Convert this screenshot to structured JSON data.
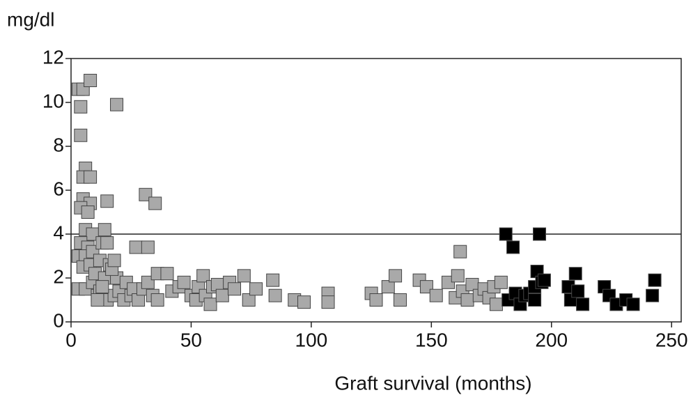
{
  "chart_data": {
    "type": "scatter",
    "y_label": "mg/dl",
    "x_label": "Graft survival (months)",
    "xlim": [
      0,
      254
    ],
    "ylim": [
      0,
      12
    ],
    "xticks": [
      0,
      50,
      100,
      150,
      200,
      250
    ],
    "yticks": [
      0,
      2,
      4,
      6,
      8,
      10,
      12
    ],
    "reference_line": 4,
    "series": [
      {
        "color": "#a9a9a9",
        "x": [
          3,
          5,
          8,
          4,
          4,
          6,
          5,
          8,
          5,
          8,
          4,
          7,
          6,
          9,
          4,
          7,
          3,
          6,
          9,
          5,
          8,
          3,
          6,
          9,
          11,
          10,
          12,
          13,
          14,
          15,
          16,
          14,
          12,
          15,
          18,
          19,
          17,
          18,
          19,
          15,
          11,
          13,
          20,
          22,
          23,
          25,
          26,
          27,
          32,
          31,
          35,
          28,
          30,
          32,
          34,
          36,
          36,
          40,
          42,
          45,
          47,
          50,
          52,
          53,
          55,
          56,
          58,
          59,
          61,
          63,
          66,
          68,
          72,
          74,
          77,
          84,
          85,
          93,
          97,
          107,
          107,
          125,
          127,
          132,
          135,
          137,
          145,
          148,
          152,
          157,
          160,
          161,
          162,
          163,
          165,
          167,
          170,
          172,
          174,
          176,
          177,
          179
        ],
        "values": [
          10.6,
          10.6,
          11,
          9.8,
          8.5,
          7,
          6.6,
          6.6,
          5.6,
          5.4,
          5.2,
          5,
          4.2,
          4,
          3.6,
          3.4,
          3,
          3,
          3.2,
          2.5,
          2.6,
          1.5,
          1.5,
          1.8,
          1.2,
          2.2,
          2.8,
          3.6,
          4.2,
          3.6,
          2.6,
          2,
          1.4,
          1,
          1.2,
          2,
          2.4,
          2.8,
          9.9,
          5.5,
          1,
          1.6,
          1.4,
          1,
          1.8,
          1.2,
          1.5,
          3.4,
          3.4,
          5.8,
          5.4,
          1,
          1.5,
          1.8,
          1.2,
          1,
          2.2,
          2.2,
          1.4,
          1.6,
          1.8,
          1.2,
          1,
          1.6,
          2.1,
          1.2,
          0.8,
          1.6,
          1.7,
          1.2,
          1.8,
          1.5,
          2.1,
          1,
          1.5,
          1.9,
          1.2,
          1,
          0.9,
          1.3,
          0.9,
          1.3,
          1,
          1.6,
          2.1,
          1,
          1.9,
          1.6,
          1.2,
          1.8,
          1.1,
          2.1,
          3.2,
          1.4,
          1,
          1.7,
          1.2,
          1.5,
          1.1,
          1.6,
          0.8,
          1.8
        ]
      },
      {
        "color": "#000000",
        "x": [
          181,
          184,
          195,
          182,
          185,
          187,
          189,
          191,
          193,
          194,
          196,
          197,
          193,
          207,
          208,
          210,
          211,
          213,
          222,
          224,
          227,
          231,
          234,
          242,
          243
        ],
        "values": [
          4,
          3.4,
          4,
          1,
          1.3,
          0.8,
          1.2,
          1.3,
          1.6,
          2.3,
          1.8,
          1.9,
          1,
          1.6,
          1,
          2.2,
          1.4,
          0.8,
          1.6,
          1.2,
          0.8,
          1,
          0.8,
          1.2,
          1.9
        ]
      }
    ]
  }
}
